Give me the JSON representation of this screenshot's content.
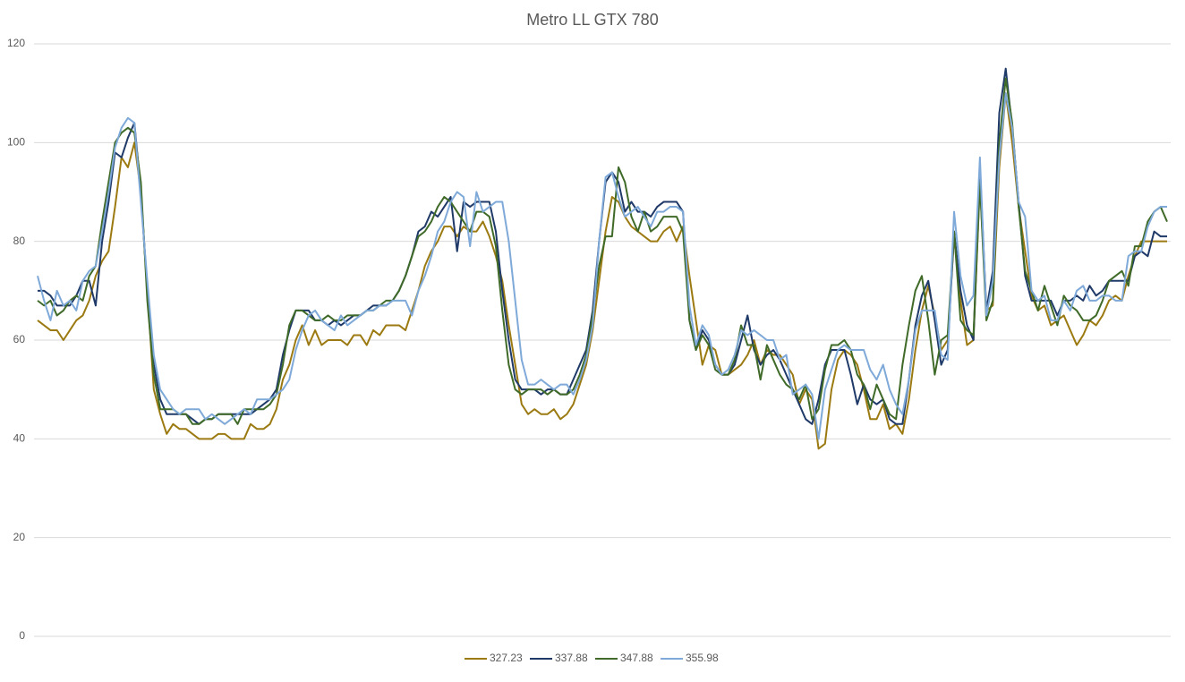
{
  "chart_data": {
    "type": "line",
    "title": "Metro LL GTX 780",
    "ylim": [
      0,
      120
    ],
    "yticks": [
      0,
      20,
      40,
      60,
      80,
      100,
      120
    ],
    "grid": true,
    "legend": "bottom",
    "series": [
      {
        "name": "327.23",
        "color": "#9c7a12",
        "values": [
          64,
          63,
          62,
          62,
          60,
          62,
          64,
          65,
          68,
          73,
          76,
          78,
          87,
          97,
          95,
          100,
          90,
          70,
          50,
          45,
          41,
          43,
          42,
          42,
          41,
          40,
          40,
          40,
          41,
          41,
          40,
          40,
          40,
          43,
          42,
          42,
          43,
          46,
          52,
          55,
          60,
          63,
          59,
          62,
          59,
          60,
          60,
          60,
          59,
          61,
          61,
          59,
          62,
          61,
          63,
          63,
          63,
          62,
          66,
          70,
          75,
          78,
          80,
          83,
          83,
          81,
          83,
          82,
          82,
          84,
          81,
          77,
          72,
          63,
          55,
          47,
          45,
          46,
          45,
          45,
          46,
          44,
          45,
          47,
          51,
          55,
          62,
          72,
          82,
          89,
          88,
          85,
          83,
          82,
          81,
          80,
          80,
          82,
          83,
          80,
          83,
          73,
          64,
          55,
          59,
          58,
          53,
          53,
          54,
          55,
          57,
          60,
          55,
          58,
          57,
          57,
          55,
          53,
          47,
          50,
          48,
          38,
          39,
          50,
          56,
          58,
          57,
          55,
          50,
          44,
          44,
          47,
          42,
          43,
          41,
          48,
          58,
          66,
          71,
          65,
          58,
          60,
          81,
          68,
          59,
          60,
          92,
          66,
          67,
          95,
          110,
          100,
          87,
          78,
          69,
          66,
          67,
          63,
          64,
          65,
          62,
          59,
          61,
          64,
          63,
          65,
          68,
          69,
          68,
          73,
          77,
          80,
          80,
          80,
          80,
          80
        ]
      },
      {
        "name": "337.88",
        "color": "#1f3a68",
        "values": [
          70,
          70,
          69,
          67,
          67,
          67,
          69,
          72,
          72,
          67,
          80,
          88,
          98,
          97,
          101,
          104,
          90,
          70,
          55,
          48,
          45,
          45,
          45,
          45,
          44,
          43,
          44,
          44,
          45,
          45,
          45,
          45,
          45,
          45,
          46,
          47,
          48,
          50,
          57,
          62,
          66,
          66,
          66,
          64,
          64,
          63,
          64,
          63,
          64,
          65,
          65,
          66,
          67,
          67,
          67,
          68,
          70,
          73,
          77,
          82,
          83,
          86,
          85,
          87,
          89,
          78,
          88,
          87,
          88,
          88,
          88,
          82,
          70,
          60,
          52,
          50,
          50,
          50,
          49,
          50,
          50,
          49,
          49,
          52,
          55,
          58,
          66,
          80,
          92,
          94,
          92,
          86,
          88,
          86,
          86,
          85,
          87,
          88,
          88,
          88,
          86,
          64,
          58,
          62,
          60,
          55,
          53,
          53,
          55,
          60,
          65,
          58,
          55,
          57,
          58,
          56,
          53,
          50,
          47,
          44,
          43,
          48,
          55,
          58,
          58,
          58,
          53,
          47,
          51,
          48,
          47,
          48,
          44,
          43,
          43,
          52,
          63,
          69,
          72,
          64,
          55,
          58,
          82,
          70,
          63,
          60,
          95,
          66,
          74,
          106,
          115,
          103,
          88,
          73,
          68,
          68,
          68,
          68,
          65,
          68,
          68,
          69,
          68,
          71,
          69,
          70,
          72,
          72,
          72,
          72,
          77,
          78,
          77,
          82,
          81,
          81
        ]
      },
      {
        "name": "347.88",
        "color": "#3f6a28",
        "values": [
          68,
          67,
          68,
          65,
          66,
          68,
          69,
          68,
          73,
          75,
          84,
          92,
          100,
          102,
          103,
          102,
          92,
          68,
          53,
          46,
          46,
          46,
          45,
          45,
          43,
          43,
          44,
          44,
          45,
          45,
          45,
          43,
          46,
          46,
          46,
          46,
          47,
          49,
          55,
          63,
          66,
          66,
          65,
          64,
          64,
          65,
          64,
          64,
          65,
          65,
          65,
          66,
          66,
          67,
          68,
          68,
          70,
          73,
          77,
          81,
          82,
          84,
          87,
          89,
          88,
          86,
          84,
          82,
          86,
          86,
          85,
          79,
          66,
          55,
          50,
          49,
          50,
          50,
          50,
          49,
          50,
          49,
          49,
          50,
          53,
          57,
          65,
          75,
          81,
          81,
          95,
          92,
          85,
          82,
          86,
          82,
          83,
          85,
          85,
          85,
          82,
          64,
          58,
          61,
          59,
          54,
          53,
          53,
          56,
          63,
          59,
          59,
          52,
          59,
          56,
          53,
          51,
          50,
          48,
          51,
          44,
          46,
          54,
          59,
          59,
          60,
          58,
          53,
          51,
          46,
          51,
          48,
          45,
          44,
          55,
          63,
          70,
          73,
          64,
          53,
          60,
          61,
          82,
          64,
          62,
          61,
          92,
          64,
          68,
          100,
          113,
          104,
          87,
          74,
          70,
          66,
          71,
          67,
          63,
          69,
          67,
          66,
          64,
          64,
          65,
          68,
          72,
          73,
          74,
          71,
          79,
          79,
          84,
          86,
          87,
          84
        ]
      },
      {
        "name": "355.98",
        "color": "#7ea9d8",
        "values": [
          73,
          68,
          64,
          70,
          67,
          68,
          66,
          72,
          74,
          75,
          82,
          90,
          99,
          103,
          105,
          104,
          88,
          72,
          57,
          50,
          48,
          46,
          45,
          46,
          46,
          46,
          44,
          45,
          44,
          43,
          44,
          45,
          46,
          45,
          48,
          48,
          48,
          49,
          50,
          52,
          58,
          62,
          65,
          66,
          64,
          63,
          62,
          65,
          63,
          64,
          65,
          66,
          66,
          67,
          67,
          68,
          68,
          68,
          65,
          70,
          73,
          77,
          82,
          84,
          88,
          90,
          89,
          79,
          90,
          86,
          87,
          88,
          88,
          80,
          68,
          56,
          51,
          51,
          52,
          51,
          50,
          51,
          51,
          49,
          52,
          56,
          63,
          80,
          93,
          94,
          89,
          85,
          86,
          87,
          85,
          83,
          86,
          86,
          87,
          87,
          86,
          67,
          59,
          63,
          61,
          55,
          53,
          54,
          57,
          62,
          61,
          62,
          61,
          60,
          60,
          56,
          57,
          49,
          50,
          51,
          49,
          40,
          50,
          54,
          58,
          59,
          58,
          58,
          58,
          54,
          52,
          55,
          50,
          47,
          45,
          52,
          62,
          66,
          66,
          66,
          57,
          56,
          86,
          73,
          67,
          69,
          97,
          65,
          72,
          97,
          110,
          103,
          88,
          85,
          70,
          68,
          69,
          64,
          64,
          68,
          66,
          70,
          71,
          68,
          68,
          69,
          69,
          68,
          68,
          77,
          78,
          78,
          83,
          86,
          87,
          87
        ]
      }
    ]
  }
}
